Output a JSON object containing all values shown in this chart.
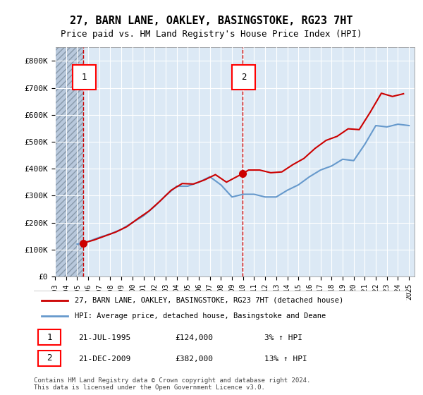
{
  "title": "27, BARN LANE, OAKLEY, BASINGSTOKE, RG23 7HT",
  "subtitle": "Price paid vs. HM Land Registry's House Price Index (HPI)",
  "legend_line1": "27, BARN LANE, OAKLEY, BASINGSTOKE, RG23 7HT (detached house)",
  "legend_line2": "HPI: Average price, detached house, Basingstoke and Deane",
  "footnote": "Contains HM Land Registry data © Crown copyright and database right 2024.\nThis data is licensed under the Open Government Licence v3.0.",
  "marker1_label": "1",
  "marker1_date": "21-JUL-1995",
  "marker1_price": "£124,000",
  "marker1_hpi": "3% ↑ HPI",
  "marker2_label": "2",
  "marker2_date": "21-DEC-2009",
  "marker2_price": "£382,000",
  "marker2_hpi": "13% ↑ HPI",
  "marker1_year": 1995.55,
  "marker1_value": 124000,
  "marker2_year": 2009.97,
  "marker2_value": 382000,
  "hatch_end_year": 1995.55,
  "price_paid_color": "#cc0000",
  "hpi_color": "#6699cc",
  "background_color": "#dce9f5",
  "hatch_color": "#c0c8d8",
  "grid_color": "#ffffff",
  "ylim": [
    0,
    850000
  ],
  "xlim_start": 1993.0,
  "xlim_end": 2025.5,
  "yticks": [
    0,
    100000,
    200000,
    300000,
    400000,
    500000,
    600000,
    700000,
    800000
  ],
  "ytick_labels": [
    "£0",
    "£100K",
    "£200K",
    "£300K",
    "£400K",
    "£500K",
    "£600K",
    "£700K",
    "£800K"
  ],
  "xticks": [
    1993,
    1994,
    1995,
    1996,
    1997,
    1998,
    1999,
    2000,
    2001,
    2002,
    2003,
    2004,
    2005,
    2006,
    2007,
    2008,
    2009,
    2010,
    2011,
    2012,
    2013,
    2014,
    2015,
    2016,
    2017,
    2018,
    2019,
    2020,
    2021,
    2022,
    2023,
    2024,
    2025
  ],
  "price_paid_years": [
    1995.55,
    2009.97
  ],
  "price_paid_values": [
    124000,
    382000
  ],
  "hpi_years": [
    1995.0,
    1996.0,
    1997.0,
    1998.0,
    1999.0,
    2000.0,
    2001.0,
    2002.0,
    2003.0,
    2004.0,
    2005.0,
    2006.0,
    2007.0,
    2008.0,
    2009.0,
    2010.0,
    2011.0,
    2012.0,
    2013.0,
    2014.0,
    2015.0,
    2016.0,
    2017.0,
    2018.0,
    2019.0,
    2020.0,
    2021.0,
    2022.0,
    2023.0,
    2024.0,
    2025.0
  ],
  "hpi_values": [
    120000,
    130000,
    145000,
    158000,
    175000,
    200000,
    225000,
    260000,
    300000,
    335000,
    335000,
    350000,
    370000,
    340000,
    295000,
    305000,
    305000,
    295000,
    295000,
    320000,
    340000,
    370000,
    395000,
    410000,
    435000,
    430000,
    490000,
    560000,
    555000,
    565000,
    560000
  ],
  "pp_interp_years": [
    1995.55,
    1996.5,
    1997.5,
    1998.5,
    1999.5,
    2000.5,
    2001.5,
    2002.5,
    2003.5,
    2004.5,
    2005.5,
    2006.5,
    2007.5,
    2008.5,
    2009.97,
    2010.5,
    2011.5,
    2012.5,
    2013.5,
    2014.5,
    2015.5,
    2016.5,
    2017.5,
    2018.5,
    2019.5,
    2020.5,
    2021.5,
    2022.5,
    2023.5,
    2024.5
  ],
  "pp_interp_values": [
    124000,
    135000,
    150000,
    165000,
    185000,
    215000,
    243000,
    280000,
    320000,
    345000,
    343000,
    358000,
    378000,
    350000,
    382000,
    395000,
    395000,
    385000,
    388000,
    415000,
    438000,
    475000,
    505000,
    520000,
    548000,
    545000,
    610000,
    680000,
    668000,
    678000
  ]
}
